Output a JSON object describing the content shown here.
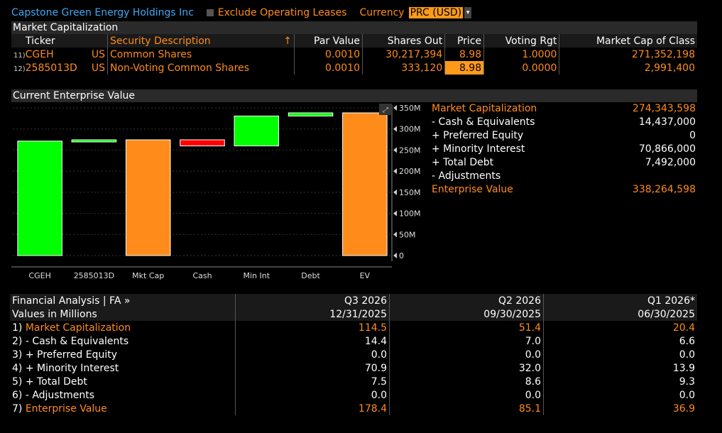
{
  "header": {
    "company": "Capstone Green Energy Holdings Inc",
    "exclude_label": "Exclude Operating Leases",
    "currency_label": "Currency",
    "currency_value": "PRC (USD)"
  },
  "market_cap": {
    "title": "Market Capitalization",
    "columns": [
      "Ticker",
      "Security Description",
      "Par Value",
      "Shares Out",
      "Price",
      "Voting Rgt",
      "Market Cap of Class"
    ],
    "sort_arrow": "↑",
    "rows": [
      {
        "num": "11)",
        "ticker": "CGEH",
        "country": "US",
        "desc": "Common Shares",
        "par": "0.0010",
        "shares": "30,217,394",
        "price": "8.98",
        "voting": "1.0000",
        "mcap": "271,352,198"
      },
      {
        "num": "12)",
        "ticker": "2585013D",
        "country": "US",
        "desc": "Non-Voting Common Shares",
        "par": "0.0010",
        "shares": "333,120",
        "price": "8.98",
        "voting": "0.0000",
        "mcap": "2,991,400"
      }
    ]
  },
  "ev": {
    "title": "Current Enterprise Value",
    "summary": [
      {
        "label": "Market Capitalization",
        "value": "274,343,598",
        "color": "#ff8c1a"
      },
      {
        "label": "- Cash & Equivalents",
        "value": "14,437,000",
        "color": "#ffffff"
      },
      {
        "label": "+ Preferred Equity",
        "value": "0",
        "color": "#ffffff"
      },
      {
        "label": "+ Minority Interest",
        "value": "70,866,000",
        "color": "#ffffff"
      },
      {
        "label": "+ Total Debt",
        "value": "7,492,000",
        "color": "#ffffff"
      },
      {
        "label": "- Adjustments",
        "value": "",
        "color": "#ffffff"
      },
      {
        "label": "Enterprise Value",
        "value": "338,264,598",
        "color": "#ff8c1a"
      }
    ]
  },
  "chart_data": {
    "type": "bar",
    "categories": [
      "CGEH",
      "2585013D",
      "Mkt Cap",
      "Cash",
      "Min Int",
      "Debt",
      "EV"
    ],
    "bars": [
      {
        "low": 0,
        "high": 271.35,
        "color": "#00ff00"
      },
      {
        "low": 271.35,
        "high": 274.34,
        "color": "#00ff00"
      },
      {
        "low": 0,
        "high": 274.34,
        "color": "#ff8c1a"
      },
      {
        "low": 259.91,
        "high": 274.34,
        "color": "#ff0000"
      },
      {
        "low": 259.91,
        "high": 330.77,
        "color": "#00ff00"
      },
      {
        "low": 330.77,
        "high": 338.26,
        "color": "#00ff00"
      },
      {
        "low": 0,
        "high": 338.26,
        "color": "#ff8c1a"
      }
    ],
    "yticks": [
      0,
      50,
      100,
      150,
      200,
      250,
      300,
      350
    ],
    "ytick_labels": [
      "0",
      "50M",
      "100M",
      "150M",
      "200M",
      "250M",
      "300M",
      "350M"
    ],
    "ylim": [
      0,
      350
    ],
    "units": "millions",
    "grid": true
  },
  "fa": {
    "title": "Financial Analysis | FA »",
    "units": "Values in Millions",
    "periods": [
      {
        "label": "Q3 2026",
        "date": "12/31/2025"
      },
      {
        "label": "Q2 2026",
        "date": "09/30/2025"
      },
      {
        "label": "Q1 2026*",
        "date": "06/30/2025"
      }
    ],
    "rows": [
      {
        "num": "1)",
        "label": "Market Capitalization",
        "values": [
          "114.5",
          "51.4",
          "20.4"
        ],
        "color": "#ff8c1a"
      },
      {
        "num": "2)",
        "label": "- Cash & Equivalents",
        "values": [
          "14.4",
          "7.0",
          "6.6"
        ],
        "color": "#ffffff"
      },
      {
        "num": "3)",
        "label": "+ Preferred Equity",
        "values": [
          "0.0",
          "0.0",
          "0.0"
        ],
        "color": "#ffffff"
      },
      {
        "num": "4)",
        "label": "+ Minority Interest",
        "values": [
          "70.9",
          "32.0",
          "13.9"
        ],
        "color": "#ffffff"
      },
      {
        "num": "5)",
        "label": "+ Total Debt",
        "values": [
          "7.5",
          "8.6",
          "9.3"
        ],
        "color": "#ffffff"
      },
      {
        "num": "6)",
        "label": "- Adjustments",
        "values": [
          "0.0",
          "0.0",
          "0.0"
        ],
        "color": "#ffffff"
      },
      {
        "num": "7)",
        "label": "Enterprise Value",
        "values": [
          "178.4",
          "85.1",
          "36.9"
        ],
        "color": "#ff8c1a"
      }
    ]
  }
}
